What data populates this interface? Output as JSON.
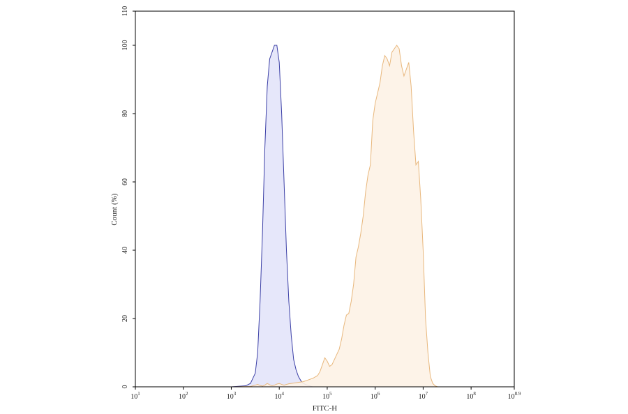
{
  "chart_data": {
    "type": "area",
    "xlabel": "FITC-H",
    "ylabel": "Count (%)",
    "x_scale": "log",
    "xlim": [
      10,
      794328235
    ],
    "ylim": [
      0,
      110
    ],
    "x_ticks": [
      {
        "value": 10,
        "base": "10",
        "exp": "1"
      },
      {
        "value": 100,
        "base": "10",
        "exp": "2"
      },
      {
        "value": 1000,
        "base": "10",
        "exp": "3"
      },
      {
        "value": 10000,
        "base": "10",
        "exp": "4"
      },
      {
        "value": 100000,
        "base": "10",
        "exp": "5"
      },
      {
        "value": 1000000,
        "base": "10",
        "exp": "6"
      },
      {
        "value": 10000000,
        "base": "10",
        "exp": "7"
      },
      {
        "value": 100000000,
        "base": "10",
        "exp": "8"
      },
      {
        "value": 794328235,
        "base": "10",
        "exp": "8.9"
      }
    ],
    "y_ticks": [
      0,
      20,
      40,
      60,
      80,
      100,
      110
    ],
    "grid": false,
    "series": [
      {
        "fill": "#e3e4fa",
        "stroke": "#3b3fa6",
        "points": [
          [
            10,
            0
          ],
          [
            1000,
            0
          ],
          [
            1995,
            0.3
          ],
          [
            2512,
            1
          ],
          [
            3162,
            4
          ],
          [
            3548,
            10
          ],
          [
            3981,
            25
          ],
          [
            4467,
            45
          ],
          [
            5012,
            70
          ],
          [
            5623,
            88
          ],
          [
            6310,
            96
          ],
          [
            7079,
            98
          ],
          [
            7943,
            100
          ],
          [
            8913,
            100
          ],
          [
            10000,
            95
          ],
          [
            11220,
            80
          ],
          [
            12589,
            60
          ],
          [
            14125,
            40
          ],
          [
            15849,
            25
          ],
          [
            17783,
            15
          ],
          [
            19953,
            8
          ],
          [
            22387,
            5
          ],
          [
            25119,
            3
          ],
          [
            28184,
            1.8
          ],
          [
            31623,
            1
          ],
          [
            39811,
            0.4
          ],
          [
            50119,
            0
          ],
          [
            794328235,
            0
          ]
        ]
      },
      {
        "fill": "#fdf2e6",
        "stroke": "#e8b77c",
        "points": [
          [
            10,
            0
          ],
          [
            1000,
            0
          ],
          [
            2512,
            0.1
          ],
          [
            3162,
            0.5
          ],
          [
            3548,
            0.7
          ],
          [
            3981,
            0.4
          ],
          [
            4467,
            0.2
          ],
          [
            5012,
            0.5
          ],
          [
            5623,
            1
          ],
          [
            6310,
            0.6
          ],
          [
            7079,
            0.3
          ],
          [
            7943,
            0.5
          ],
          [
            8913,
            0.8
          ],
          [
            10000,
            1
          ],
          [
            11220,
            0.7
          ],
          [
            12589,
            0.5
          ],
          [
            14125,
            0.7
          ],
          [
            15849,
            0.9
          ],
          [
            17783,
            1
          ],
          [
            19953,
            1.1
          ],
          [
            25119,
            1.3
          ],
          [
            31623,
            1.5
          ],
          [
            39811,
            2
          ],
          [
            50119,
            2.5
          ],
          [
            63096,
            3.3
          ],
          [
            70795,
            4.5
          ],
          [
            79433,
            6.5
          ],
          [
            89125,
            8.5
          ],
          [
            100000,
            7.5
          ],
          [
            112202,
            6
          ],
          [
            125893,
            6.5
          ],
          [
            141254,
            8
          ],
          [
            158489,
            9.5
          ],
          [
            177828,
            11
          ],
          [
            199526,
            14
          ],
          [
            223872,
            18
          ],
          [
            251189,
            21
          ],
          [
            281838,
            21.5
          ],
          [
            316228,
            25
          ],
          [
            354813,
            30
          ],
          [
            398107,
            38
          ],
          [
            446684,
            41
          ],
          [
            501187,
            45
          ],
          [
            562341,
            50
          ],
          [
            630957,
            57
          ],
          [
            707946,
            62
          ],
          [
            794328,
            65
          ],
          [
            891251,
            78
          ],
          [
            1000000,
            83
          ],
          [
            1122018,
            86
          ],
          [
            1258925,
            89
          ],
          [
            1412538,
            94
          ],
          [
            1584893,
            97
          ],
          [
            1778279,
            96
          ],
          [
            1995262,
            94
          ],
          [
            2238721,
            98
          ],
          [
            2511886,
            99
          ],
          [
            2818383,
            100
          ],
          [
            3162278,
            99
          ],
          [
            3548134,
            94
          ],
          [
            3981072,
            91
          ],
          [
            4466836,
            93
          ],
          [
            5011872,
            95
          ],
          [
            5623413,
            88
          ],
          [
            6309573,
            75
          ],
          [
            7079458,
            65
          ],
          [
            7943282,
            66
          ],
          [
            8912509,
            55
          ],
          [
            10000000,
            40
          ],
          [
            11220185,
            20
          ],
          [
            12589254,
            10
          ],
          [
            14125375,
            3
          ],
          [
            15848932,
            1
          ],
          [
            17782794,
            0.3
          ],
          [
            19952623,
            0
          ],
          [
            794328235,
            0
          ]
        ]
      }
    ]
  }
}
